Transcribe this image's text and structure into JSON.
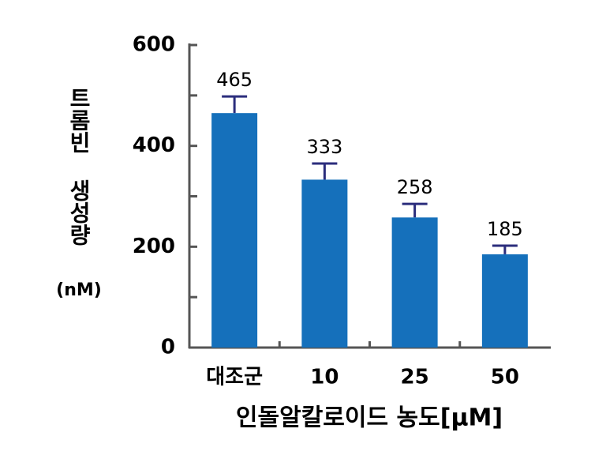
{
  "chart_data": {
    "type": "bar",
    "categories": [
      "대조군",
      "10",
      "25",
      "50"
    ],
    "values": [
      465,
      333,
      258,
      185
    ],
    "errors": [
      33,
      32,
      27,
      17
    ],
    "color": "#1570bb",
    "error_color": "#2b2d7c",
    "ylabel": [
      "트롬빈 생성량",
      "(nM)"
    ],
    "xlabel": "인돌알칼로이드 농도[μM]",
    "ylim": [
      0,
      600
    ],
    "yticks": [
      0,
      200,
      400,
      600
    ],
    "minor_yticks": [
      100,
      300,
      500
    ]
  }
}
